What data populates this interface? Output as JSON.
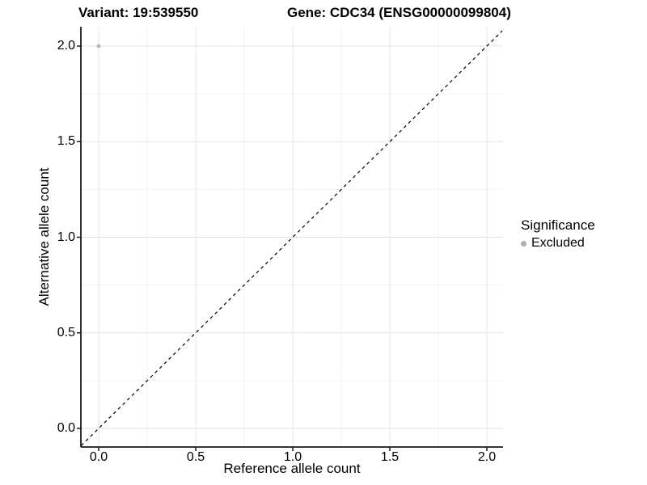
{
  "chart_data": {
    "type": "scatter",
    "title_left": "Variant: 19:539550",
    "title_right": "Gene: CDC34 (ENSG00000099804)",
    "xlabel": "Reference allele count",
    "ylabel": "Alternative allele count",
    "xlim": [
      -0.09,
      2.08
    ],
    "ylim": [
      -0.1,
      2.1
    ],
    "x_ticks": {
      "values": [
        0,
        0.5,
        1,
        1.5,
        2
      ],
      "labels": [
        "0.0",
        "0.5",
        "1.0",
        "1.5",
        "2.0"
      ]
    },
    "y_ticks": {
      "values": [
        0,
        0.5,
        1,
        1.5,
        2
      ],
      "labels": [
        "0.0",
        "0.5",
        "1.0",
        "1.5",
        "2.0"
      ]
    },
    "x_minor": [
      0.25,
      0.75,
      1.25,
      1.75
    ],
    "y_minor": [
      0.25,
      0.75,
      1.25,
      1.75
    ],
    "grid": {
      "major_color": "#e3e3e3",
      "minor_color": "#f1f1f1",
      "background": "#ffffff"
    },
    "axis": {
      "line_color": "#1a1a1a",
      "tick_color": "#1a1a1a"
    },
    "identity_line": {
      "style": "dashed",
      "color": "#000000",
      "from": -0.09,
      "to": 2.08
    },
    "series": [
      {
        "name": "Excluded",
        "color": "#b9b9b9",
        "marker": "circle",
        "marker_radius": 2.5,
        "points": [
          [
            0,
            2
          ]
        ]
      }
    ],
    "legend": {
      "position": "right",
      "title": "Significance",
      "items": [
        {
          "label": "Excluded",
          "color": "#aeaeae"
        }
      ]
    }
  }
}
